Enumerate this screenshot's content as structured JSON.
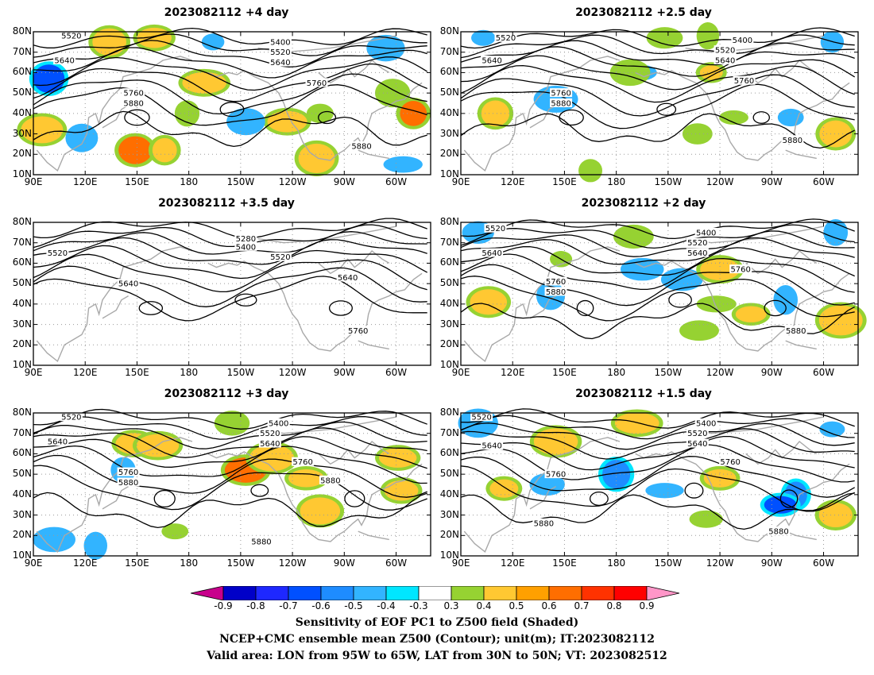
{
  "chart_data": [
    {
      "type": "heatmap",
      "title": "2023082112 +4 day",
      "x_ticks": [
        "90E",
        "120E",
        "150E",
        "180",
        "150W",
        "120W",
        "90W",
        "60W"
      ],
      "y_ticks": [
        "10N",
        "20N",
        "30N",
        "40N",
        "50N",
        "60N",
        "70N",
        "80N"
      ],
      "lon_range": [
        90,
        320
      ],
      "lat_range": [
        10,
        80
      ],
      "contour_labels": [
        {
          "text": "5520",
          "lon": 112,
          "lat": 78
        },
        {
          "text": "5640",
          "lon": 108,
          "lat": 66
        },
        {
          "text": "5760",
          "lon": 148,
          "lat": 50
        },
        {
          "text": "5880",
          "lon": 148,
          "lat": 45
        },
        {
          "text": "5400",
          "lon": 233,
          "lat": 75
        },
        {
          "text": "5520",
          "lon": 233,
          "lat": 70
        },
        {
          "text": "5640",
          "lon": 233,
          "lat": 65
        },
        {
          "text": "5760",
          "lon": 254,
          "lat": 55
        },
        {
          "text": "5880",
          "lon": 280,
          "lat": 24
        }
      ],
      "shading": [
        {
          "lon": 99,
          "lat": 57,
          "value": -0.6
        },
        {
          "lon": 134,
          "lat": 75,
          "value": 0.5
        },
        {
          "lon": 160,
          "lat": 77,
          "value": 0.5
        },
        {
          "lon": 194,
          "lat": 75,
          "value": -0.4
        },
        {
          "lon": 189,
          "lat": 55,
          "value": 0.5
        },
        {
          "lon": 179,
          "lat": 40,
          "value": 0.4
        },
        {
          "lon": 149,
          "lat": 22,
          "value": 0.6
        },
        {
          "lon": 166,
          "lat": 22,
          "value": 0.5
        },
        {
          "lon": 237,
          "lat": 36,
          "value": 0.5
        },
        {
          "lon": 256,
          "lat": 40,
          "value": 0.4
        },
        {
          "lon": 310,
          "lat": 40,
          "value": 0.6
        },
        {
          "lon": 95,
          "lat": 32,
          "value": 0.5
        },
        {
          "lon": 118,
          "lat": 28,
          "value": -0.4
        },
        {
          "lon": 254,
          "lat": 18,
          "value": 0.5
        },
        {
          "lon": 304,
          "lat": 15,
          "value": -0.4
        },
        {
          "lon": 298,
          "lat": 50,
          "value": 0.4
        },
        {
          "lon": 294,
          "lat": 72,
          "value": -0.4
        },
        {
          "lon": 213,
          "lat": 36,
          "value": -0.4
        }
      ]
    },
    {
      "type": "heatmap",
      "title": "2023082112 +2.5 day",
      "x_ticks": [
        "90E",
        "120E",
        "150E",
        "180",
        "150W",
        "120W",
        "90W",
        "60W"
      ],
      "y_ticks": [
        "10N",
        "20N",
        "30N",
        "40N",
        "50N",
        "60N",
        "70N",
        "80N"
      ],
      "lon_range": [
        90,
        320
      ],
      "lat_range": [
        10,
        80
      ],
      "contour_labels": [
        {
          "text": "5520",
          "lon": 116,
          "lat": 77
        },
        {
          "text": "5640",
          "lon": 108,
          "lat": 66
        },
        {
          "text": "5760",
          "lon": 148,
          "lat": 50
        },
        {
          "text": "5880",
          "lon": 148,
          "lat": 45
        },
        {
          "text": "5400",
          "lon": 253,
          "lat": 76
        },
        {
          "text": "5520",
          "lon": 243,
          "lat": 71
        },
        {
          "text": "5640",
          "lon": 243,
          "lat": 66
        },
        {
          "text": "5760",
          "lon": 254,
          "lat": 56
        },
        {
          "text": "5880",
          "lon": 282,
          "lat": 27
        }
      ],
      "shading": [
        {
          "lon": 103,
          "lat": 77,
          "value": -0.4
        },
        {
          "lon": 305,
          "lat": 75,
          "value": -0.4
        },
        {
          "lon": 208,
          "lat": 77,
          "value": 0.4
        },
        {
          "lon": 233,
          "lat": 78,
          "value": 0.4
        },
        {
          "lon": 193,
          "lat": 60,
          "value": -0.4
        },
        {
          "lon": 235,
          "lat": 60,
          "value": 0.5
        },
        {
          "lon": 110,
          "lat": 40,
          "value": 0.5
        },
        {
          "lon": 145,
          "lat": 47,
          "value": -0.4
        },
        {
          "lon": 248,
          "lat": 38,
          "value": 0.4
        },
        {
          "lon": 281,
          "lat": 38,
          "value": -0.4
        },
        {
          "lon": 307,
          "lat": 30,
          "value": 0.5
        },
        {
          "lon": 188,
          "lat": 60,
          "value": 0.4
        },
        {
          "lon": 165,
          "lat": 12,
          "value": 0.4
        },
        {
          "lon": 227,
          "lat": 30,
          "value": 0.4
        }
      ]
    },
    {
      "type": "heatmap",
      "title": "2023082112 +3.5 day",
      "x_ticks": [
        "90E",
        "120E",
        "150E",
        "180",
        "150W",
        "120W",
        "90W",
        "60W"
      ],
      "y_ticks": [
        "10N",
        "20N",
        "30N",
        "40N",
        "50N",
        "60N",
        "70N",
        "80N"
      ],
      "lon_range": [
        90,
        320
      ],
      "lat_range": [
        10,
        80
      ],
      "contour_labels": [
        {
          "text": "5520",
          "lon": 104,
          "lat": 65
        },
        {
          "text": "5640",
          "lon": 145,
          "lat": 50
        },
        {
          "text": "5280",
          "lon": 213,
          "lat": 72
        },
        {
          "text": "5400",
          "lon": 213,
          "lat": 68
        },
        {
          "text": "5520",
          "lon": 233,
          "lat": 63
        },
        {
          "text": "5640",
          "lon": 272,
          "lat": 53
        },
        {
          "text": "5760",
          "lon": 278,
          "lat": 27
        }
      ],
      "shading": []
    },
    {
      "type": "heatmap",
      "title": "2023082112 +2 day",
      "x_ticks": [
        "90E",
        "120E",
        "150E",
        "180",
        "150W",
        "120W",
        "90W",
        "60W"
      ],
      "y_ticks": [
        "10N",
        "20N",
        "30N",
        "40N",
        "50N",
        "60N",
        "70N",
        "80N"
      ],
      "lon_range": [
        90,
        320
      ],
      "lat_range": [
        10,
        80
      ],
      "contour_labels": [
        {
          "text": "5520",
          "lon": 110,
          "lat": 77
        },
        {
          "text": "5640",
          "lon": 108,
          "lat": 65
        },
        {
          "text": "5760",
          "lon": 145,
          "lat": 51
        },
        {
          "text": "5880",
          "lon": 145,
          "lat": 46
        },
        {
          "text": "5400",
          "lon": 232,
          "lat": 75
        },
        {
          "text": "5520",
          "lon": 227,
          "lat": 70
        },
        {
          "text": "5640",
          "lon": 227,
          "lat": 65
        },
        {
          "text": "5760",
          "lon": 252,
          "lat": 57
        },
        {
          "text": "5880",
          "lon": 284,
          "lat": 27
        }
      ],
      "shading": [
        {
          "lon": 100,
          "lat": 75,
          "value": -0.4
        },
        {
          "lon": 307,
          "lat": 75,
          "value": -0.4
        },
        {
          "lon": 190,
          "lat": 73,
          "value": 0.4
        },
        {
          "lon": 148,
          "lat": 62,
          "value": 0.4
        },
        {
          "lon": 195,
          "lat": 57,
          "value": -0.4
        },
        {
          "lon": 218,
          "lat": 52,
          "value": -0.4
        },
        {
          "lon": 240,
          "lat": 57,
          "value": 0.5
        },
        {
          "lon": 238,
          "lat": 40,
          "value": 0.4
        },
        {
          "lon": 258,
          "lat": 35,
          "value": 0.5
        },
        {
          "lon": 278,
          "lat": 42,
          "value": -0.4
        },
        {
          "lon": 310,
          "lat": 32,
          "value": 0.5
        },
        {
          "lon": 106,
          "lat": 41,
          "value": 0.5
        },
        {
          "lon": 142,
          "lat": 44,
          "value": -0.4
        },
        {
          "lon": 228,
          "lat": 27,
          "value": 0.4
        }
      ]
    },
    {
      "type": "heatmap",
      "title": "2023082112 +3 day",
      "x_ticks": [
        "90E",
        "120E",
        "150E",
        "180",
        "150W",
        "120W",
        "90W",
        "60W"
      ],
      "y_ticks": [
        "10N",
        "20N",
        "30N",
        "40N",
        "50N",
        "60N",
        "70N",
        "80N"
      ],
      "lon_range": [
        90,
        320
      ],
      "lat_range": [
        10,
        80
      ],
      "contour_labels": [
        {
          "text": "5520",
          "lon": 112,
          "lat": 78
        },
        {
          "text": "5640",
          "lon": 104,
          "lat": 66
        },
        {
          "text": "5760",
          "lon": 145,
          "lat": 51
        },
        {
          "text": "5880",
          "lon": 145,
          "lat": 46
        },
        {
          "text": "5400",
          "lon": 232,
          "lat": 75
        },
        {
          "text": "5520",
          "lon": 227,
          "lat": 70
        },
        {
          "text": "5640",
          "lon": 227,
          "lat": 65
        },
        {
          "text": "5760",
          "lon": 246,
          "lat": 56
        },
        {
          "text": "5880",
          "lon": 262,
          "lat": 47
        },
        {
          "text": "5880",
          "lon": 222,
          "lat": 17
        }
      ],
      "shading": [
        {
          "lon": 142,
          "lat": 52,
          "value": -0.4
        },
        {
          "lon": 148,
          "lat": 65,
          "value": 0.5
        },
        {
          "lon": 213,
          "lat": 52,
          "value": 0.6
        },
        {
          "lon": 228,
          "lat": 58,
          "value": 0.5
        },
        {
          "lon": 248,
          "lat": 48,
          "value": 0.5
        },
        {
          "lon": 256,
          "lat": 32,
          "value": 0.5
        },
        {
          "lon": 303,
          "lat": 42,
          "value": 0.5
        },
        {
          "lon": 301,
          "lat": 58,
          "value": 0.5
        },
        {
          "lon": 102,
          "lat": 18,
          "value": -0.4
        },
        {
          "lon": 126,
          "lat": 15,
          "value": -0.4
        },
        {
          "lon": 172,
          "lat": 22,
          "value": 0.4
        },
        {
          "lon": 205,
          "lat": 75,
          "value": 0.4
        },
        {
          "lon": 162,
          "lat": 64,
          "value": 0.5
        }
      ]
    },
    {
      "type": "heatmap",
      "title": "2023082112 +1.5 day",
      "x_ticks": [
        "90E",
        "120E",
        "150E",
        "180",
        "150W",
        "120W",
        "90W",
        "60W"
      ],
      "y_ticks": [
        "10N",
        "20N",
        "30N",
        "40N",
        "50N",
        "60N",
        "70N",
        "80N"
      ],
      "lon_range": [
        90,
        320
      ],
      "lat_range": [
        10,
        80
      ],
      "contour_labels": [
        {
          "text": "5520",
          "lon": 102,
          "lat": 78
        },
        {
          "text": "5640",
          "lon": 108,
          "lat": 64
        },
        {
          "text": "5760",
          "lon": 145,
          "lat": 50
        },
        {
          "text": "5880",
          "lon": 138,
          "lat": 26
        },
        {
          "text": "5400",
          "lon": 232,
          "lat": 75
        },
        {
          "text": "5520",
          "lon": 227,
          "lat": 70
        },
        {
          "text": "5640",
          "lon": 227,
          "lat": 65
        },
        {
          "text": "5760",
          "lon": 246,
          "lat": 56
        },
        {
          "text": "5880",
          "lon": 274,
          "lat": 22
        }
      ],
      "shading": [
        {
          "lon": 100,
          "lat": 75,
          "value": -0.4
        },
        {
          "lon": 305,
          "lat": 72,
          "value": -0.4
        },
        {
          "lon": 145,
          "lat": 66,
          "value": 0.5
        },
        {
          "lon": 192,
          "lat": 75,
          "value": 0.5
        },
        {
          "lon": 180,
          "lat": 50,
          "value": -0.5
        },
        {
          "lon": 208,
          "lat": 42,
          "value": -0.4
        },
        {
          "lon": 115,
          "lat": 43,
          "value": 0.5
        },
        {
          "lon": 140,
          "lat": 45,
          "value": -0.4
        },
        {
          "lon": 240,
          "lat": 48,
          "value": 0.5
        },
        {
          "lon": 284,
          "lat": 40,
          "value": -0.5
        },
        {
          "lon": 275,
          "lat": 35,
          "value": -0.6
        },
        {
          "lon": 307,
          "lat": 30,
          "value": 0.5
        },
        {
          "lon": 232,
          "lat": 28,
          "value": 0.4
        }
      ]
    }
  ],
  "colorbar": {
    "labels": [
      "-0.9",
      "-0.8",
      "-0.7",
      "-0.6",
      "-0.5",
      "-0.4",
      "-0.3",
      "0.3",
      "0.4",
      "0.5",
      "0.6",
      "0.7",
      "0.8",
      "0.9"
    ],
    "colors": [
      "#c8008c",
      "#0000c8",
      "#1e28ff",
      "#0050ff",
      "#1e8cff",
      "#32b4ff",
      "#00e6ff",
      "#ffffff",
      "#96d232",
      "#ffc832",
      "#ffa000",
      "#ff6e00",
      "#ff3200",
      "#ff0000",
      "#ff96c8"
    ]
  },
  "captions": {
    "line1": "Sensitivity of EOF PC1 to Z500 field (Shaded)",
    "line2": "NCEP+CMC ensemble mean Z500 (Contour); unit(m); IT:2023082112",
    "line3": "Valid area: LON from 95W to 65W, LAT from 30N to 50N; VT: 2023082512"
  }
}
